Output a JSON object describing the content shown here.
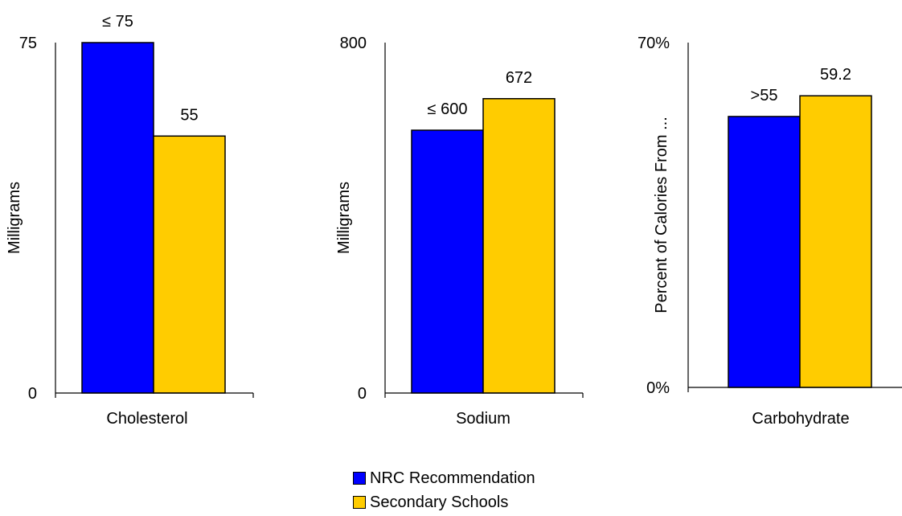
{
  "chart_data": [
    {
      "type": "bar",
      "categories": [
        "Cholesterol"
      ],
      "series": [
        {
          "name": "NRC Recommendation",
          "values": [
            75
          ],
          "label": "≤ 75"
        },
        {
          "name": "Secondary Schools",
          "values": [
            55
          ],
          "label": "55"
        }
      ],
      "ylabel": "Milligrams",
      "ylim": [
        0,
        75
      ],
      "yticks": [
        "0",
        "75"
      ]
    },
    {
      "type": "bar",
      "categories": [
        "Sodium"
      ],
      "series": [
        {
          "name": "NRC Recommendation",
          "values": [
            600
          ],
          "label": "≤ 600"
        },
        {
          "name": "Secondary Schools",
          "values": [
            672
          ],
          "label": "672"
        }
      ],
      "ylabel": "Milligrams",
      "ylim": [
        0,
        800
      ],
      "yticks": [
        "0",
        "800"
      ]
    },
    {
      "type": "bar",
      "categories": [
        "Carbohydrate"
      ],
      "series": [
        {
          "name": "NRC Recommendation",
          "values": [
            55
          ],
          "label": ">55"
        },
        {
          "name": "Secondary Schools",
          "values": [
            59.2
          ],
          "label": "59.2"
        }
      ],
      "ylabel": "Percent of Calories From ...",
      "ylim": [
        0,
        70
      ],
      "yticks": [
        "0%",
        "70%"
      ]
    }
  ],
  "legend": [
    {
      "name": "NRC Recommendation",
      "color": "#0000FF"
    },
    {
      "name": "Secondary Schools",
      "color": "#FFCC00"
    }
  ]
}
